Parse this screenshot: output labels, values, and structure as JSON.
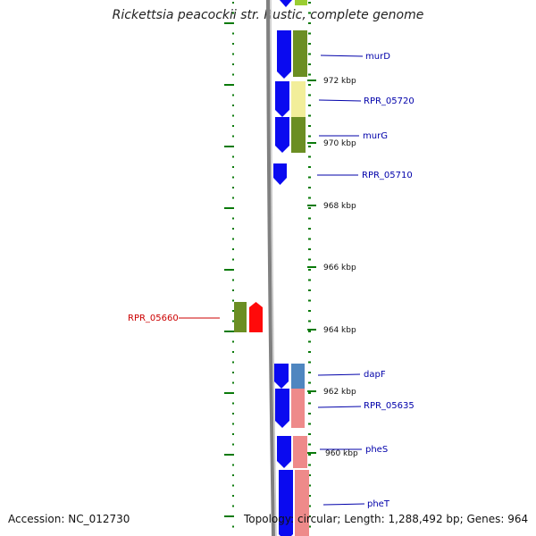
{
  "title": "Rickettsia peacockii str. Rustic, complete genome",
  "accession": "Accession: NC_012730",
  "summary": "Topology: circular; Length: 1,288,492 bp; Genes: 964",
  "colors": {
    "cds_blue": "#0a0af0",
    "cds_red": "#ff0a0a",
    "cog_green": "#6b8e23",
    "cog_yellow": "#f2ee9a",
    "cog_steelblue": "#4f86c0",
    "cog_pink": "#ee8a8a",
    "backbone": "#808080",
    "tick_green": "#0a7a0a",
    "label_blue": "#0000aa",
    "label_red": "#cc0000"
  },
  "ticks": [
    {
      "label": "972 kbp"
    },
    {
      "label": "970 kbp"
    },
    {
      "label": "968 kbp"
    },
    {
      "label": "966 kbp"
    },
    {
      "label": "964 kbp"
    },
    {
      "label": "962 kbp"
    },
    {
      "label": "960 kbp"
    }
  ],
  "genes": [
    {
      "label": "murD",
      "strand": "reverse"
    },
    {
      "label": "RPR_05720",
      "strand": "reverse"
    },
    {
      "label": "murG",
      "strand": "reverse"
    },
    {
      "label": "RPR_05710",
      "strand": "reverse"
    },
    {
      "label": "RPR_05660",
      "strand": "forward"
    },
    {
      "label": "dapF",
      "strand": "reverse"
    },
    {
      "label": "RPR_05635",
      "strand": "reverse"
    },
    {
      "label": "pheS",
      "strand": "reverse"
    },
    {
      "label": "pheT",
      "strand": "reverse"
    }
  ]
}
